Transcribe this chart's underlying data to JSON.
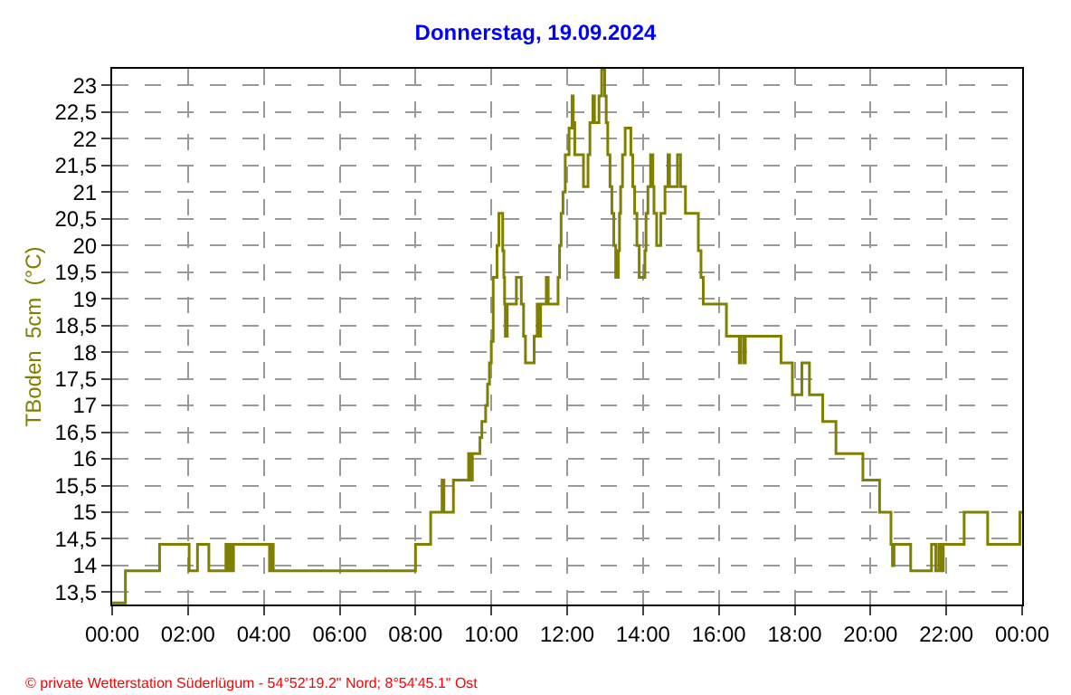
{
  "chart_data": {
    "type": "step",
    "title": "Donnerstag, 19.09.2024",
    "ylabel": "TBoden  5cm  (°C)",
    "x": [
      0,
      0.35,
      1.25,
      2.03,
      2.25,
      2.55,
      3.0,
      3.05,
      3.1,
      3.15,
      3.2,
      4.15,
      4.2,
      4.25,
      8.0,
      8.4,
      8.7,
      8.75,
      9.0,
      9.4,
      9.45,
      9.5,
      9.7,
      9.75,
      9.85,
      9.9,
      9.95,
      10.0,
      10.05,
      10.15,
      10.2,
      10.3,
      10.33,
      10.35,
      10.37,
      10.42,
      10.66,
      10.79,
      10.85,
      10.9,
      11.13,
      11.21,
      11.27,
      11.3,
      11.45,
      11.5,
      11.76,
      11.8,
      11.84,
      11.89,
      11.95,
      12.05,
      12.13,
      12.16,
      12.2,
      12.43,
      12.55,
      12.6,
      12.68,
      12.72,
      12.79,
      12.84,
      12.91,
      12.99,
      13.03,
      13.07,
      13.13,
      13.18,
      13.23,
      13.28,
      13.35,
      13.38,
      13.41,
      13.46,
      13.53,
      13.68,
      13.73,
      13.78,
      13.84,
      13.9,
      14.05,
      14.08,
      14.13,
      14.2,
      14.26,
      14.29,
      14.36,
      14.47,
      14.58,
      14.66,
      14.7,
      14.91,
      14.99,
      15.12,
      15.46,
      15.53,
      15.59,
      16.2,
      16.54,
      16.58,
      16.66,
      16.7,
      17.64,
      17.94,
      18.19,
      18.39,
      18.74,
      19.09,
      19.8,
      20.24,
      20.54,
      20.58,
      20.62,
      21.06,
      21.61,
      21.72,
      21.8,
      21.86,
      21.92,
      22.47,
      23.09,
      23.94,
      24.0
    ],
    "values": [
      13.3,
      13.9,
      14.4,
      13.9,
      14.4,
      13.9,
      14.4,
      13.9,
      14.4,
      13.9,
      14.4,
      13.9,
      14.4,
      13.9,
      14.4,
      15.0,
      15.6,
      15.0,
      15.6,
      16.1,
      15.6,
      16.1,
      16.4,
      16.7,
      17.0,
      17.4,
      17.8,
      18.2,
      19.4,
      20.0,
      20.6,
      19.9,
      19.4,
      18.9,
      18.3,
      18.9,
      19.4,
      18.9,
      18.3,
      17.8,
      18.3,
      18.9,
      18.3,
      18.9,
      19.4,
      18.9,
      19.4,
      20.0,
      20.6,
      21.0,
      21.7,
      22.2,
      22.8,
      22.3,
      21.7,
      21.1,
      21.7,
      22.3,
      22.8,
      22.3,
      22.3,
      22.8,
      23.3,
      22.8,
      22.3,
      21.7,
      21.1,
      20.6,
      20.0,
      19.4,
      19.9,
      20.6,
      21.1,
      21.7,
      22.2,
      21.7,
      21.1,
      20.6,
      20.0,
      19.4,
      19.9,
      20.6,
      21.1,
      21.7,
      21.1,
      20.6,
      20.0,
      20.6,
      21.1,
      21.7,
      21.1,
      21.7,
      21.1,
      20.6,
      19.9,
      19.4,
      18.9,
      18.3,
      17.8,
      18.3,
      17.8,
      18.3,
      17.8,
      17.2,
      17.8,
      17.2,
      16.7,
      16.1,
      15.6,
      15.0,
      14.4,
      14.0,
      14.4,
      13.9,
      14.4,
      13.9,
      14.4,
      13.9,
      14.4,
      15.0,
      14.4,
      15.0,
      15.0
    ],
    "color": "#808000",
    "xlim": [
      0,
      24
    ],
    "xticks": [
      {
        "value": 0,
        "label": "00:00"
      },
      {
        "value": 2,
        "label": "02:00"
      },
      {
        "value": 4,
        "label": "04:00"
      },
      {
        "value": 6,
        "label": "06:00"
      },
      {
        "value": 8,
        "label": "08:00"
      },
      {
        "value": 10,
        "label": "10:00"
      },
      {
        "value": 12,
        "label": "12:00"
      },
      {
        "value": 14,
        "label": "14:00"
      },
      {
        "value": 16,
        "label": "16:00"
      },
      {
        "value": 18,
        "label": "18:00"
      },
      {
        "value": 20,
        "label": "20:00"
      },
      {
        "value": 22,
        "label": "22:00"
      },
      {
        "value": 24,
        "label": "00:00"
      }
    ],
    "ylim": [
      13.27,
      23.31
    ],
    "yticks": [
      {
        "value": 13.5,
        "label": "13,5"
      },
      14,
      {
        "value": 14.5,
        "label": "14,5"
      },
      15,
      {
        "value": 15.5,
        "label": "15,5"
      },
      16,
      {
        "value": 16.5,
        "label": "16,5"
      },
      17,
      {
        "value": 17.5,
        "label": "17,5"
      },
      18,
      {
        "value": 18.5,
        "label": "18,5"
      },
      19,
      {
        "value": 19.5,
        "label": "19,5"
      },
      20,
      {
        "value": 20.5,
        "label": "20,5"
      },
      21,
      {
        "value": 21.5,
        "label": "21,5"
      },
      22,
      {
        "value": 22.5,
        "label": "22,5"
      },
      23
    ],
    "grid": true,
    "line_style": "solid",
    "annotations": [
      "© private Wetterstation Süderlügum - 54°52'19.2\" Nord; 8°54'45.1\" Ost"
    ]
  }
}
